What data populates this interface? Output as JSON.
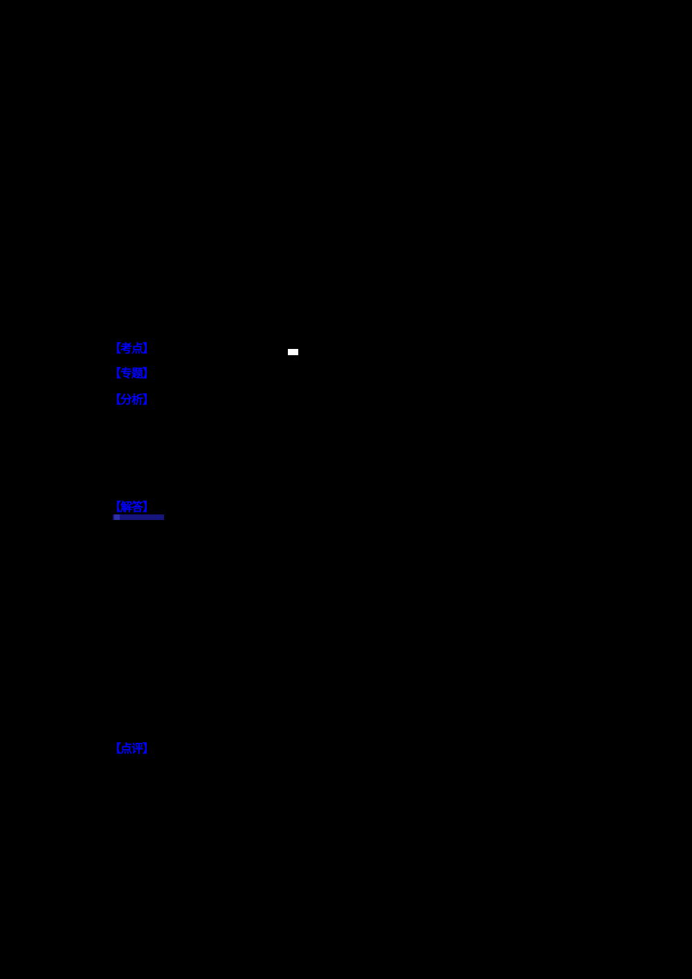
{
  "page": {
    "background_color": "#000000",
    "note_colors": {
      "link_blue": "#0000ff",
      "link_artifact_navy": "#15157d",
      "highlight_white": "#ffffff"
    }
  },
  "sections": [
    {
      "label": "【考点】"
    },
    {
      "label": "【专题】"
    },
    {
      "label": "【分析】"
    },
    {
      "label": "【解答】"
    },
    {
      "label": "【点评】"
    }
  ]
}
